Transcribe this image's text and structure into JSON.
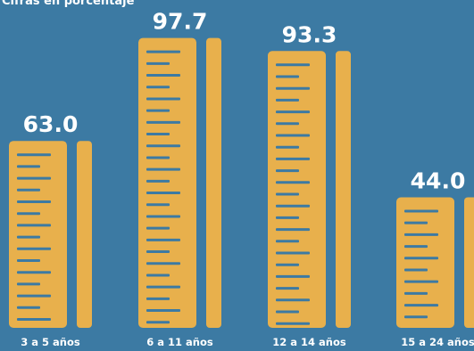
{
  "chart_data": {
    "type": "bar",
    "subtitle": "Cifras en porcentaje",
    "categories": [
      "3 a 5 años",
      "6 a 11 años",
      "12 a 14 años",
      "15 a 24 años"
    ],
    "values": [
      63.0,
      97.7,
      93.3,
      44.0
    ],
    "value_labels": [
      "63.0",
      "97.7",
      "93.3",
      "44.0"
    ],
    "ylim": [
      0,
      100
    ],
    "grid": false,
    "legend": "none",
    "colors": {
      "background": "#3c7aa3",
      "bar": "#e8b04c",
      "tick": "#3c7aa3",
      "text": "#ffffff"
    }
  }
}
